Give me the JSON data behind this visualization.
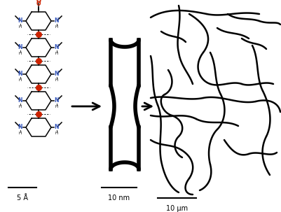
{
  "fig_width": 4.01,
  "fig_height": 3.03,
  "dpi": 100,
  "bg_color": "#ffffff",
  "scale_bar_labels": [
    "5 Å",
    "10 nm",
    "10 μm"
  ],
  "fiber_lw": 1.8,
  "capsule_lw": 4.0,
  "mol_lw": 1.1
}
